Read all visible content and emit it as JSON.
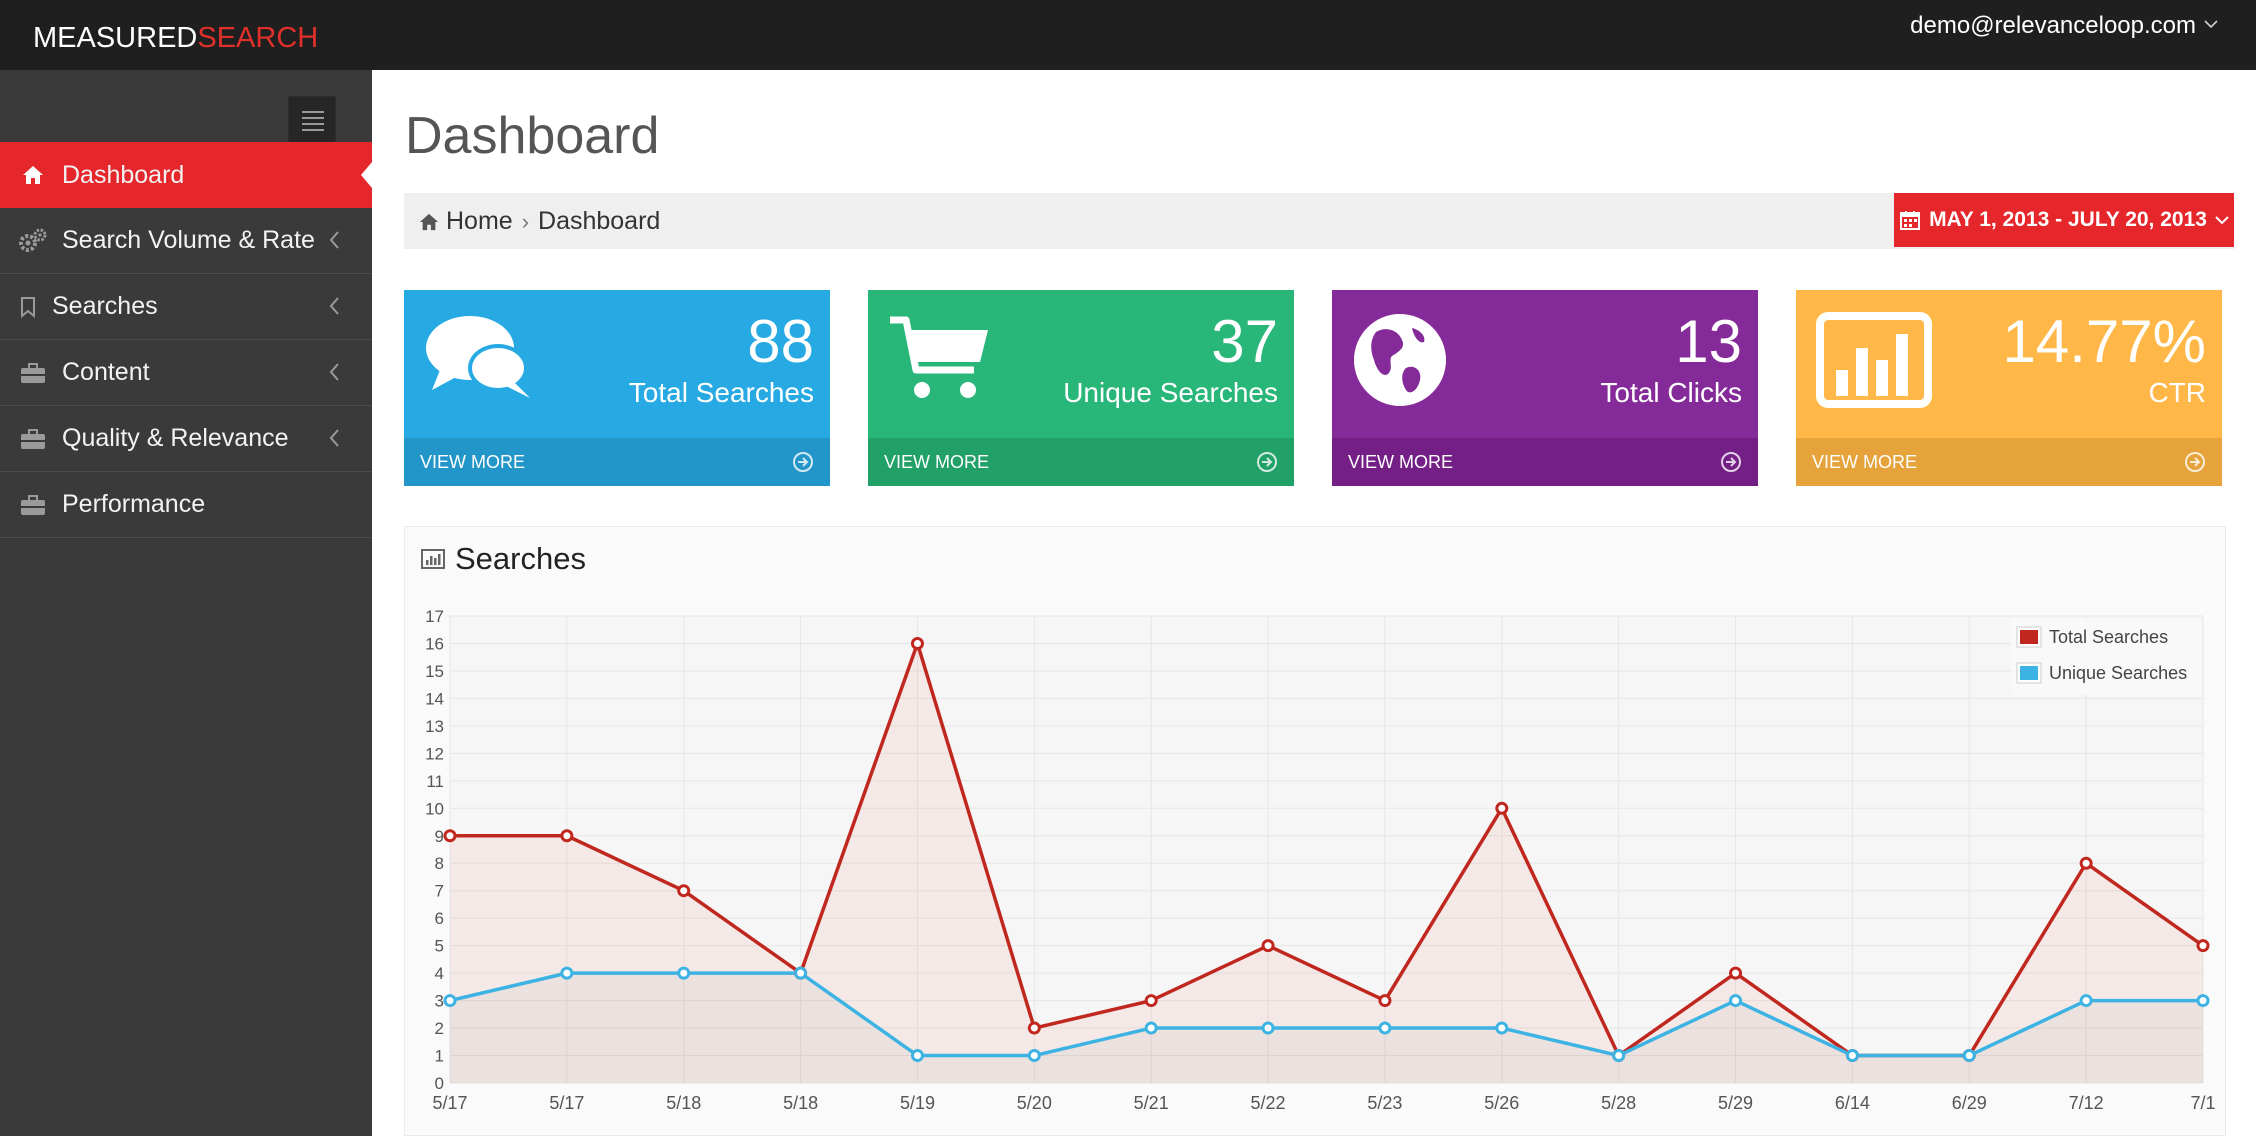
{
  "brand": {
    "part1": "MEASURED",
    "part2": "SEARCH"
  },
  "user": {
    "email": "demo@relevanceloop.com"
  },
  "sidebar": {
    "items": [
      {
        "label": "Dashboard",
        "icon": "home-icon",
        "active": true
      },
      {
        "label": "Search Volume & Rate",
        "icon": "gears-icon"
      },
      {
        "label": "Searches",
        "icon": "bookmark-icon"
      },
      {
        "label": "Content",
        "icon": "briefcase-icon"
      },
      {
        "label": "Quality & Relevance",
        "icon": "briefcase-icon"
      },
      {
        "label": "Performance",
        "icon": "briefcase-icon"
      }
    ]
  },
  "page": {
    "title": "Dashboard"
  },
  "breadcrumb": {
    "home": "Home",
    "current": "Dashboard"
  },
  "date_range": "MAY 1, 2013 - JULY 20, 2013",
  "tiles": [
    {
      "value": "88",
      "label": "Total Searches",
      "footer": "VIEW MORE",
      "icon": "comments-icon"
    },
    {
      "value": "37",
      "label": "Unique Searches",
      "footer": "VIEW MORE",
      "icon": "shopping-cart-icon"
    },
    {
      "value": "13",
      "label": "Total Clicks",
      "footer": "VIEW MORE",
      "icon": "globe-icon"
    },
    {
      "value": "14.77%",
      "label": "CTR",
      "footer": "VIEW MORE",
      "icon": "bar-chart-icon"
    }
  ],
  "chart_panel": {
    "title": "Searches"
  },
  "colors": {
    "accent": "#e5262a",
    "total_series": "#c0281f",
    "unique_series": "#3db3e3"
  },
  "chart_data": {
    "type": "line",
    "categories": [
      "5/17",
      "5/17",
      "5/18",
      "5/18",
      "5/19",
      "5/20",
      "5/21",
      "5/22",
      "5/23",
      "5/26",
      "5/28",
      "5/29",
      "6/14",
      "6/29",
      "7/12",
      "7/1"
    ],
    "series": [
      {
        "name": "Total Searches",
        "values": [
          9,
          9,
          7,
          4,
          16,
          2,
          3,
          5,
          3,
          10,
          1,
          4,
          1,
          1,
          8,
          5
        ]
      },
      {
        "name": "Unique Searches",
        "values": [
          3,
          4,
          4,
          4,
          1,
          1,
          2,
          2,
          2,
          2,
          1,
          3,
          1,
          1,
          3,
          3
        ]
      }
    ],
    "yticks": [
      0,
      1,
      2,
      3,
      4,
      5,
      6,
      7,
      8,
      9,
      10,
      11,
      12,
      13,
      14,
      15,
      16,
      17
    ],
    "ylim": [
      0,
      17
    ],
    "grid": true,
    "legend": "top-right"
  }
}
